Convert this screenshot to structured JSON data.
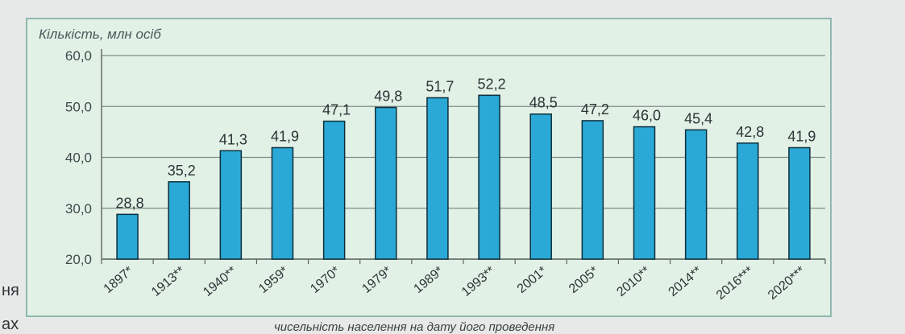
{
  "page": {
    "side_text_1": "ня",
    "side_text_2": "ах",
    "caption_fragment": "чисельність населення на дату його проведення"
  },
  "chart_data": {
    "type": "bar",
    "ylabel": "Кількість, млн осіб",
    "ylim": [
      20,
      60
    ],
    "yticks": [
      "20,0",
      "30,0",
      "40,0",
      "50,0",
      "60,0"
    ],
    "ytick_values": [
      20,
      30,
      40,
      50,
      60
    ],
    "grid": true,
    "bar_color": "#2aa9d6",
    "categories": [
      "1897*",
      "1913**",
      "1940**",
      "1959*",
      "1970*",
      "1979*",
      "1989*",
      "1993**",
      "2001*",
      "2005*",
      "2010**",
      "2014**",
      "2016***",
      "2020***"
    ],
    "values": [
      28.8,
      35.2,
      41.3,
      41.9,
      47.1,
      49.8,
      51.7,
      52.2,
      48.5,
      47.2,
      46.0,
      45.4,
      42.8,
      41.9
    ],
    "labels": [
      "28,8",
      "35,2",
      "41,3",
      "41,9",
      "47,1",
      "49,8",
      "51,7",
      "52,2",
      "48,5",
      "47,2",
      "46,0",
      "45,4",
      "42,8",
      "41,9"
    ]
  }
}
